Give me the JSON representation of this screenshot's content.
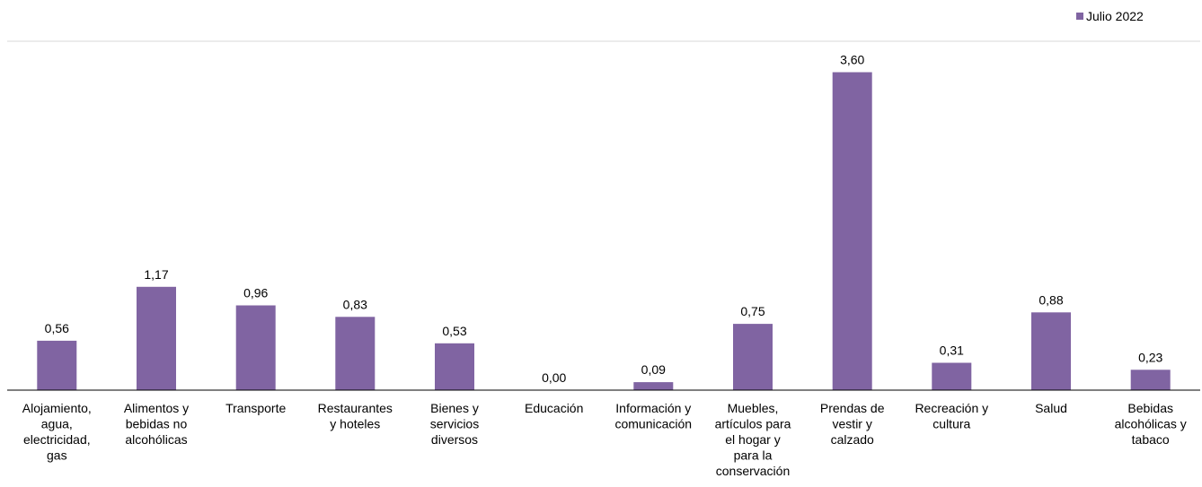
{
  "chart_data": {
    "type": "bar",
    "title": "",
    "xlabel": "",
    "ylabel": "",
    "ylim": [
      0,
      3.95
    ],
    "grid": false,
    "legend_position": "top-right",
    "categories": [
      [
        "Alojamiento,",
        "agua,",
        "electricidad,",
        "gas"
      ],
      [
        "Alimentos y",
        "bebidas no",
        "alcohólicas"
      ],
      [
        "Transporte"
      ],
      [
        "Restaurantes",
        "y hoteles"
      ],
      [
        "Bienes y",
        "servicios",
        "diversos"
      ],
      [
        "Educación"
      ],
      [
        "Información y",
        "comunicación"
      ],
      [
        "Muebles,",
        "artículos para",
        "el hogar y",
        "para la",
        "conservación"
      ],
      [
        "Prendas de",
        "vestir y",
        "calzado"
      ],
      [
        "Recreación y",
        "cultura"
      ],
      [
        "Salud"
      ],
      [
        "Bebidas",
        "alcohólicas y",
        "tabaco"
      ]
    ],
    "series": [
      {
        "name": "Julio 2022",
        "color": "#8064a2",
        "values": [
          0.56,
          1.17,
          0.96,
          0.83,
          0.53,
          0.0,
          0.09,
          0.75,
          3.6,
          0.31,
          0.88,
          0.23
        ],
        "labels": [
          "0,56",
          "1,17",
          "0,96",
          "0,83",
          "0,53",
          "0,00",
          "0,09",
          "0,75",
          "3,60",
          "0,31",
          "0,88",
          "0,23"
        ]
      }
    ]
  }
}
